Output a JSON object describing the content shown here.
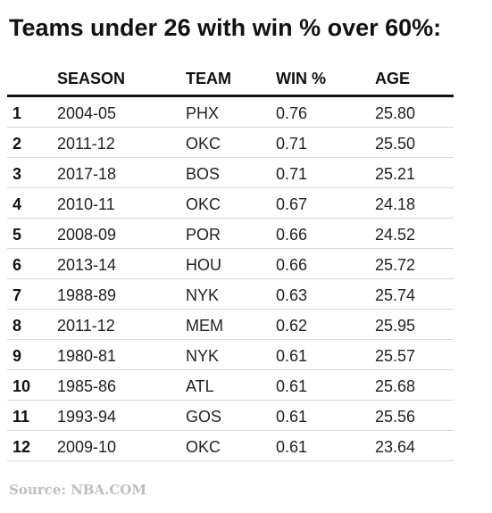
{
  "chart_data": {
    "type": "table",
    "title": "Teams under 26 with win % over 60%:",
    "columns": [
      "",
      "SEASON",
      "TEAM",
      "WIN %",
      "AGE"
    ],
    "rows": [
      {
        "rank": "1",
        "season": "2004-05",
        "team": "PHX",
        "win_pct": "0.76",
        "age": "25.80"
      },
      {
        "rank": "2",
        "season": "2011-12",
        "team": "OKC",
        "win_pct": "0.71",
        "age": "25.50"
      },
      {
        "rank": "3",
        "season": "2017-18",
        "team": "BOS",
        "win_pct": "0.71",
        "age": "25.21"
      },
      {
        "rank": "4",
        "season": "2010-11",
        "team": "OKC",
        "win_pct": "0.67",
        "age": "24.18"
      },
      {
        "rank": "5",
        "season": "2008-09",
        "team": "POR",
        "win_pct": "0.66",
        "age": "24.52"
      },
      {
        "rank": "6",
        "season": "2013-14",
        "team": "HOU",
        "win_pct": "0.66",
        "age": "25.72"
      },
      {
        "rank": "7",
        "season": "1988-89",
        "team": "NYK",
        "win_pct": "0.63",
        "age": "25.74"
      },
      {
        "rank": "8",
        "season": "2011-12",
        "team": "MEM",
        "win_pct": "0.62",
        "age": "25.95"
      },
      {
        "rank": "9",
        "season": "1980-81",
        "team": "NYK",
        "win_pct": "0.61",
        "age": "25.57"
      },
      {
        "rank": "10",
        "season": "1985-86",
        "team": "ATL",
        "win_pct": "0.61",
        "age": "25.68"
      },
      {
        "rank": "11",
        "season": "1993-94",
        "team": "GOS",
        "win_pct": "0.61",
        "age": "25.56"
      },
      {
        "rank": "12",
        "season": "2009-10",
        "team": "OKC",
        "win_pct": "0.61",
        "age": "23.64"
      }
    ],
    "source": "Source: NBA.COM"
  }
}
